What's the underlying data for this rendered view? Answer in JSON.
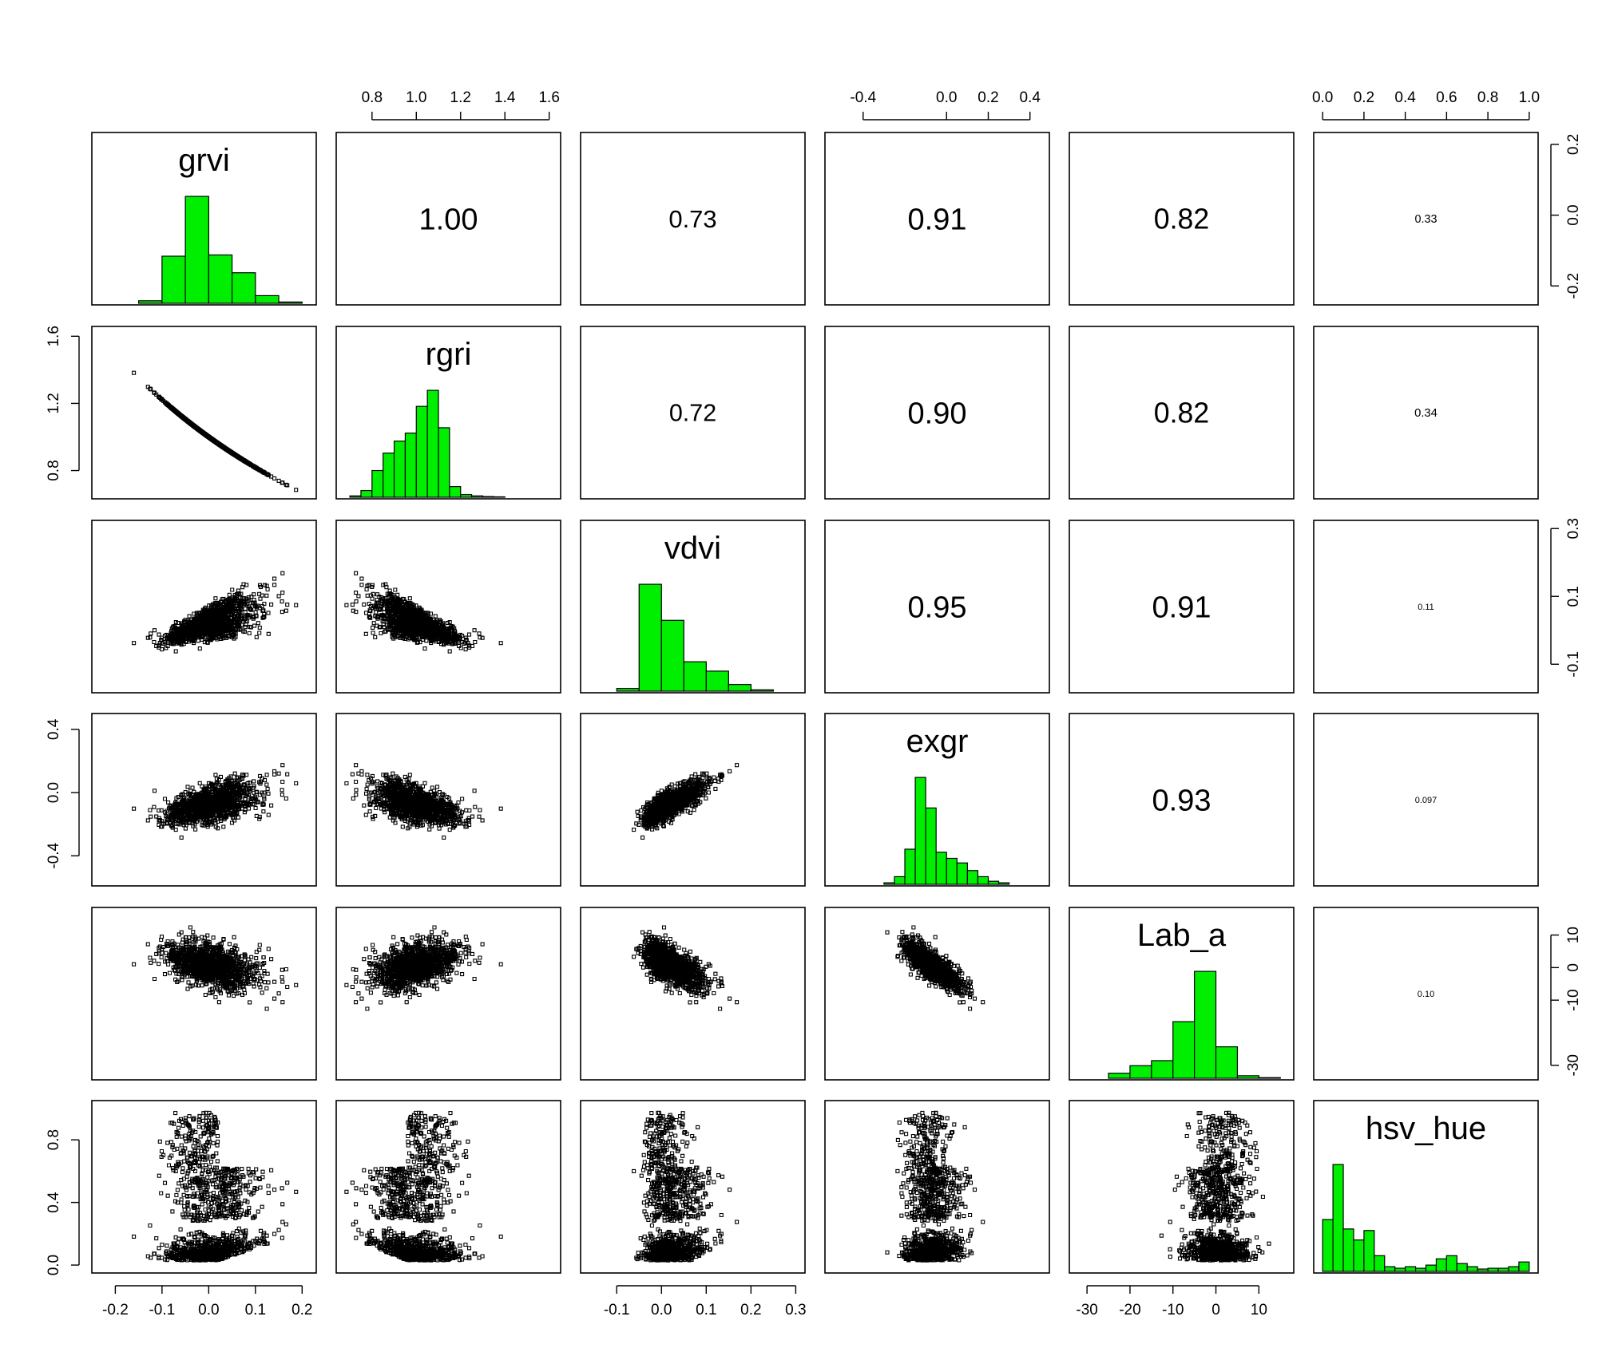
{
  "chart_data": {
    "type": "scatter-matrix",
    "title": "",
    "variables": [
      "grvi",
      "rgri",
      "vdvi",
      "exgr",
      "Lab_a",
      "hsv_hue"
    ],
    "ranges": {
      "grvi": [
        -0.24,
        0.22
      ],
      "rgri": [
        0.66,
        1.63
      ],
      "vdvi": [
        -0.17,
        0.31
      ],
      "exgr": [
        -0.56,
        0.47
      ],
      "Lab_a": [
        -33,
        17
      ],
      "hsv_hue": [
        -0.02,
        1.02
      ]
    },
    "correlations": [
      {
        "row": "grvi",
        "col": "rgri",
        "label": "1.00"
      },
      {
        "row": "grvi",
        "col": "vdvi",
        "label": "0.73"
      },
      {
        "row": "grvi",
        "col": "exgr",
        "label": "0.91"
      },
      {
        "row": "grvi",
        "col": "Lab_a",
        "label": "0.82"
      },
      {
        "row": "grvi",
        "col": "hsv_hue",
        "label": "0.33"
      },
      {
        "row": "rgri",
        "col": "vdvi",
        "label": "0.72"
      },
      {
        "row": "rgri",
        "col": "exgr",
        "label": "0.90"
      },
      {
        "row": "rgri",
        "col": "Lab_a",
        "label": "0.82"
      },
      {
        "row": "rgri",
        "col": "hsv_hue",
        "label": "0.34"
      },
      {
        "row": "vdvi",
        "col": "exgr",
        "label": "0.95"
      },
      {
        "row": "vdvi",
        "col": "Lab_a",
        "label": "0.91"
      },
      {
        "row": "vdvi",
        "col": "hsv_hue",
        "label": "0.11"
      },
      {
        "row": "exgr",
        "col": "Lab_a",
        "label": "0.93"
      },
      {
        "row": "exgr",
        "col": "hsv_hue",
        "label": "0.097"
      },
      {
        "row": "Lab_a",
        "col": "hsv_hue",
        "label": "0.10"
      }
    ],
    "histograms": {
      "grvi": {
        "edges": [
          -0.15,
          -0.1,
          -0.05,
          0.0,
          0.05,
          0.1,
          0.15,
          0.2
        ],
        "counts": [
          0.02,
          0.37,
          0.84,
          0.38,
          0.24,
          0.06,
          0.01
        ]
      },
      "rgri": {
        "edges": [
          0.7,
          0.75,
          0.8,
          0.85,
          0.9,
          0.95,
          1.0,
          1.05,
          1.1,
          1.15,
          1.2,
          1.25,
          1.3,
          1.35,
          1.4
        ],
        "counts": [
          0.01,
          0.05,
          0.2,
          0.33,
          0.42,
          0.48,
          0.68,
          0.8,
          0.52,
          0.08,
          0.02,
          0.01,
          0.005,
          0.003
        ]
      },
      "vdvi": {
        "edges": [
          -0.1,
          -0.05,
          0.0,
          0.05,
          0.1,
          0.15,
          0.2,
          0.25
        ],
        "counts": [
          0.02,
          0.8,
          0.53,
          0.22,
          0.15,
          0.05,
          0.01
        ]
      },
      "exgr": {
        "edges": [
          -0.3,
          -0.25,
          -0.2,
          -0.15,
          -0.1,
          -0.05,
          0.0,
          0.05,
          0.1,
          0.15,
          0.2,
          0.25,
          0.3
        ],
        "counts": [
          0.01,
          0.05,
          0.23,
          0.7,
          0.5,
          0.21,
          0.17,
          0.14,
          0.09,
          0.05,
          0.02,
          0.01
        ]
      },
      "Lab_a": {
        "edges": [
          -25,
          -20,
          -15,
          -10,
          -5,
          0,
          5,
          10,
          15
        ],
        "counts": [
          0.04,
          0.1,
          0.14,
          0.45,
          0.85,
          0.25,
          0.02,
          0.005
        ]
      },
      "hsv_hue": {
        "edges": [
          0.0,
          0.05,
          0.1,
          0.15,
          0.2,
          0.25,
          0.3,
          0.35,
          0.4,
          0.45,
          0.5,
          0.55,
          0.6,
          0.65,
          0.7,
          0.75,
          0.8,
          0.85,
          0.9,
          0.95,
          1.0
        ],
        "counts": [
          0.33,
          0.68,
          0.27,
          0.2,
          0.26,
          0.1,
          0.03,
          0.02,
          0.03,
          0.02,
          0.04,
          0.08,
          0.1,
          0.05,
          0.03,
          0.015,
          0.02,
          0.02,
          0.03,
          0.06
        ]
      }
    },
    "axes": {
      "top": {
        "rgri": [
          "0.8",
          "1.0",
          "1.2",
          "1.4",
          "1.6"
        ],
        "exgr": [
          "-0.4",
          "0.0",
          "0.2",
          "0.4"
        ],
        "hsv_hue": [
          "0.0",
          "0.2",
          "0.4",
          "0.6",
          "0.8",
          "1.0"
        ]
      },
      "bottom": {
        "grvi": [
          "-0.2",
          "-0.1",
          "0.0",
          "0.1",
          "0.2"
        ],
        "vdvi": [
          "-0.1",
          "0.0",
          "0.1",
          "0.2",
          "0.3"
        ],
        "Lab_a": [
          "-30",
          "-20",
          "-10",
          "0",
          "10"
        ]
      },
      "left": {
        "rgri": [
          "0.8",
          "1.2",
          "1.6"
        ],
        "exgr": [
          "-0.4",
          "0.0",
          "0.4"
        ],
        "hsv_hue": [
          "0.0",
          "0.4",
          "0.8"
        ]
      },
      "right": {
        "grvi": [
          "-0.2",
          "0.0",
          "0.2"
        ],
        "vdvi": [
          "-0.1",
          "0.1",
          "0.3"
        ],
        "Lab_a": [
          "-30",
          "-10",
          "0",
          "10"
        ]
      }
    },
    "scatter_trends": {
      "rgri_vs_grvi": "perfect decreasing curve",
      "vdvi_vs_grvi": "positive, fanning upward",
      "exgr_vs_grvi": "strong positive",
      "exgr_vs_vdvi": "very strong positive linear",
      "Lab_a_vs_exgr": "strong negative",
      "hsv_hue": "bimodal bow-tie pattern (values near 0.0-0.2 and 0.25-1.0)"
    },
    "colors": {
      "histogram_fill": "#00ee00",
      "point": "#000000",
      "frame": "#000000"
    },
    "grid": false,
    "legend": "none"
  }
}
